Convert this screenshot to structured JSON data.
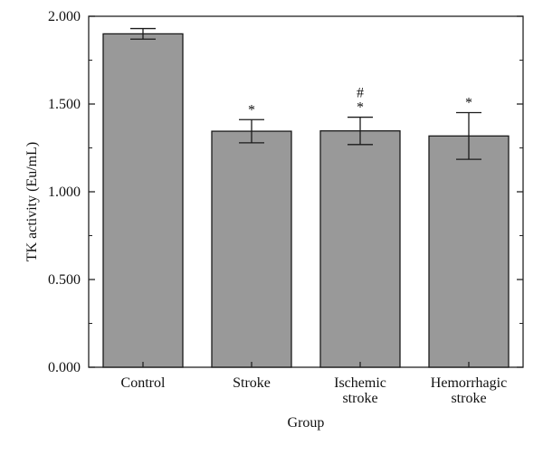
{
  "chart_data": {
    "type": "bar",
    "categories": [
      [
        "Control"
      ],
      [
        "Stroke"
      ],
      [
        "Ischemic",
        "stroke"
      ],
      [
        "Hemorrhagic",
        "stroke"
      ]
    ],
    "values": [
      1.9,
      1.345,
      1.347,
      1.318
    ],
    "error": [
      0.03,
      0.066,
      0.078,
      0.133
    ],
    "annotations": [
      [],
      [
        "*"
      ],
      [
        "#",
        "*"
      ],
      [
        "*"
      ]
    ],
    "xlabel": "Group",
    "ylabel": "TK activity (Eu/mL)",
    "ylim": [
      0,
      2.0
    ],
    "yticks": [
      "0.000",
      "0.500",
      "1.000",
      "1.500",
      "2.000"
    ],
    "grid": false,
    "bar_color": "#999999"
  }
}
